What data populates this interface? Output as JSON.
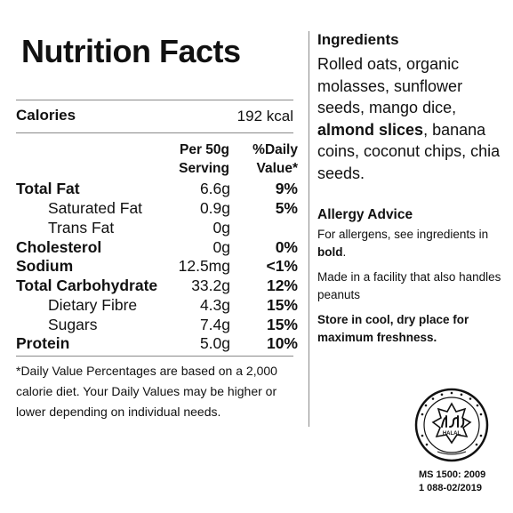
{
  "nutrition": {
    "title": "Nutrition Facts",
    "calories_label": "Calories",
    "calories_value": "192 kcal",
    "col_per_line1": "Per 50g",
    "col_per_line2": "Serving",
    "col_dv_line1": "%Daily",
    "col_dv_line2": "Value*",
    "rows": [
      {
        "name": "Total Fat",
        "value": "6.6g",
        "dv": "9%"
      },
      {
        "name": "Saturated Fat",
        "value": "0.9g",
        "dv": "5%"
      },
      {
        "name": "Trans Fat",
        "value": "0g",
        "dv": ""
      },
      {
        "name": "Cholesterol",
        "value": "0g",
        "dv": "0%"
      },
      {
        "name": "Sodium",
        "value": "12.5mg",
        "dv": "<1%"
      },
      {
        "name": "Total Carbohydrate",
        "value": "33.2g",
        "dv": "12%"
      },
      {
        "name": "Dietary Fibre",
        "value": "4.3g",
        "dv": "15%"
      },
      {
        "name": "Sugars",
        "value": "7.4g",
        "dv": "15%"
      },
      {
        "name": "Protein",
        "value": "5.0g",
        "dv": "10%"
      }
    ],
    "footnote": "*Daily Value Percentages are based on a 2,000 calorie diet. Your Daily Values may be higher or lower depending on individual needs."
  },
  "ingredients": {
    "heading": "Ingredients",
    "text_before": "Rolled oats, organic molasses, sunflower seeds, mango dice,",
    "bold_item": "almond slices",
    "text_after": ", banana coins, coconut chips, chia seeds."
  },
  "allergy": {
    "heading": "Allergy Advice",
    "text_before": "For allergens, see ingredients in",
    "bold_word": "bold",
    "text_after": ".",
    "facility": "Made in a facility that also handles peanuts",
    "storage": "Store in cool, dry place for maximum freshness."
  },
  "halal": {
    "logo_icon": "halal-certification-seal-icon",
    "seal_text": "HALAL",
    "standard": "MS 1500: 2009",
    "cert_number": "1 088-02/2019"
  }
}
